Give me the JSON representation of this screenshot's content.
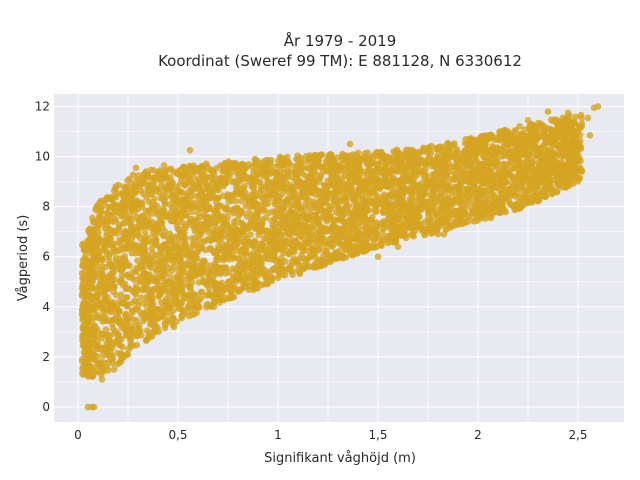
{
  "chart_data": {
    "type": "scatter",
    "title_line1": "År 1979 - 2019",
    "title_line2": "Koordinat (Sweref 99 TM): E 881128, N 6330612",
    "xlabel": "Signifikant våghöjd (m)",
    "ylabel": "Vågperiod (s)",
    "xlim": [
      -0.12,
      2.73
    ],
    "ylim": [
      -0.6,
      12.5
    ],
    "x_ticks": [
      0,
      0.5,
      1,
      1.5,
      2,
      2.5
    ],
    "x_tick_labels": [
      "0",
      "0,5",
      "1",
      "1,5",
      "2",
      "2,5"
    ],
    "y_ticks": [
      0,
      2,
      4,
      6,
      8,
      10,
      12
    ],
    "y_tick_labels": [
      "0",
      "2",
      "4",
      "6",
      "8",
      "10",
      "12"
    ],
    "grid": true,
    "marker_color": "#d4a421",
    "plot_background": "#e9e9f1",
    "envelope": {
      "x": [
        0.03,
        0.1,
        0.2,
        0.3,
        0.5,
        0.75,
        1.0,
        1.25,
        1.5,
        1.75,
        2.0,
        2.25,
        2.5
      ],
      "lower": [
        1.2,
        1.2,
        1.7,
        2.4,
        3.4,
        4.3,
        5.0,
        5.7,
        6.4,
        6.9,
        7.4,
        8.0,
        9.0
      ],
      "upper": [
        6.6,
        8.2,
        9.0,
        9.4,
        9.6,
        9.8,
        10.0,
        10.1,
        10.2,
        10.4,
        10.8,
        11.3,
        11.7
      ]
    },
    "series": [
      {
        "values": [
          [
            0.05,
            0.0
          ],
          [
            0.07,
            0.0
          ],
          [
            0.08,
            0.0
          ],
          [
            0.29,
            9.55
          ],
          [
            0.43,
            9.65
          ],
          [
            0.56,
            10.25
          ],
          [
            0.82,
            9.7
          ],
          [
            1.18,
            9.8
          ],
          [
            1.36,
            10.5
          ],
          [
            1.62,
            10.0
          ],
          [
            1.85,
            10.5
          ],
          [
            2.05,
            10.7
          ],
          [
            2.15,
            11.0
          ],
          [
            2.25,
            11.45
          ],
          [
            2.35,
            11.8
          ],
          [
            2.45,
            11.75
          ],
          [
            2.55,
            11.55
          ],
          [
            2.58,
            11.95
          ],
          [
            2.6,
            12.0
          ],
          [
            2.56,
            10.85
          ],
          [
            1.8,
            6.9
          ],
          [
            1.83,
            6.9
          ],
          [
            1.6,
            6.4
          ],
          [
            1.5,
            6.0
          ],
          [
            0.75,
            4.8
          ],
          [
            0.93,
            4.9
          ],
          [
            0.68,
            4.0
          ],
          [
            0.58,
            3.7
          ],
          [
            0.48,
            3.2
          ],
          [
            0.36,
            2.8
          ],
          [
            0.25,
            2.1
          ],
          [
            0.12,
            1.1
          ],
          [
            0.07,
            1.5
          ],
          [
            0.18,
            1.5
          ]
        ]
      }
    ]
  }
}
